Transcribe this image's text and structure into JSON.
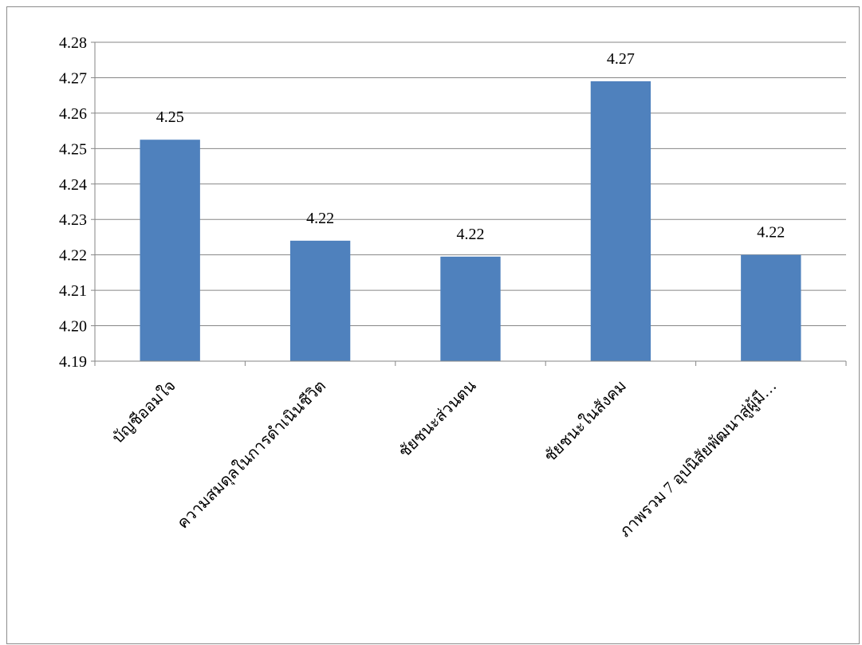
{
  "chart_data": {
    "type": "bar",
    "categories": [
      "บัญชีออมใจ",
      "ความสมดุลในการดำเนินชีวิต",
      "ชัยชนะส่วนตน",
      "ชัยชนะในสังคม",
      "ภาพรวม 7 อุปนิสัยพัฒนาสู่ผู้มี…"
    ],
    "values": [
      4.2525,
      4.224,
      4.2195,
      4.269,
      4.22
    ],
    "data_labels": [
      "4.25",
      "4.22",
      "4.22",
      "4.27",
      "4.22"
    ],
    "y_ticks": [
      "4.19",
      "4.20",
      "4.21",
      "4.22",
      "4.23",
      "4.24",
      "4.25",
      "4.26",
      "4.27",
      "4.28"
    ],
    "ylim": [
      4.19,
      4.28
    ],
    "grid": true,
    "bar_color": "#4f81bd",
    "title": "",
    "xlabel": "",
    "ylabel": ""
  }
}
